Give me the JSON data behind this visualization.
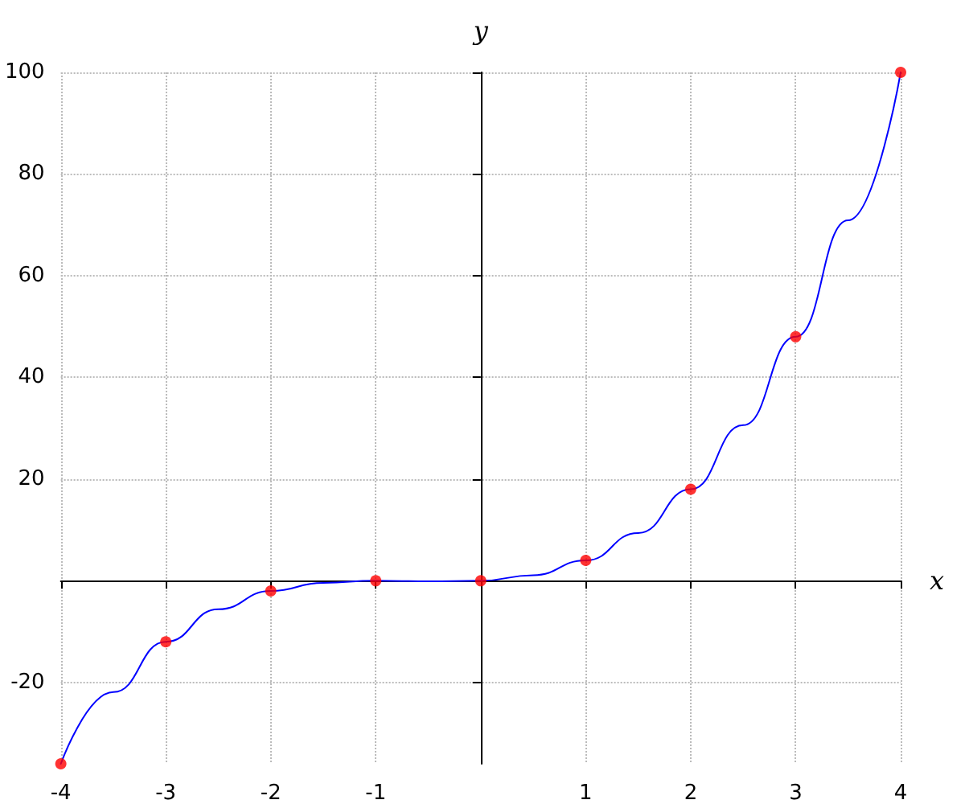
{
  "chart_data": {
    "type": "line",
    "xlabel": "x",
    "ylabel": "y",
    "xlim": [
      -4,
      4
    ],
    "ylim": [
      -36,
      100
    ],
    "xticks": [
      -4,
      -3,
      -2,
      -1,
      1,
      2,
      3,
      4
    ],
    "yticks": [
      -20,
      20,
      40,
      60,
      80,
      100
    ],
    "grid": true,
    "series": [
      {
        "color": "#0000ff",
        "marker": "none",
        "line_style": "solid",
        "x": [
          -4,
          -3.5,
          -3,
          -2.5,
          -2,
          -1.5,
          -1,
          -0.5,
          0,
          0.5,
          1,
          1.5,
          2,
          2.5,
          3,
          3.5,
          4
        ],
        "values": [
          -36,
          -21.9,
          -12,
          -5.6,
          -2,
          -0.4,
          0,
          -0.1,
          0,
          1.1,
          4,
          9.4,
          18,
          30.6,
          48,
          70.9,
          100
        ]
      },
      {
        "type": "scatter",
        "color": "#ff0000",
        "marker": "circle",
        "x": [
          -4,
          -3,
          -2,
          -1,
          0,
          1,
          2,
          3,
          4
        ],
        "values": [
          -36,
          -12,
          -2,
          0,
          0,
          4,
          18,
          48,
          100
        ]
      }
    ]
  }
}
